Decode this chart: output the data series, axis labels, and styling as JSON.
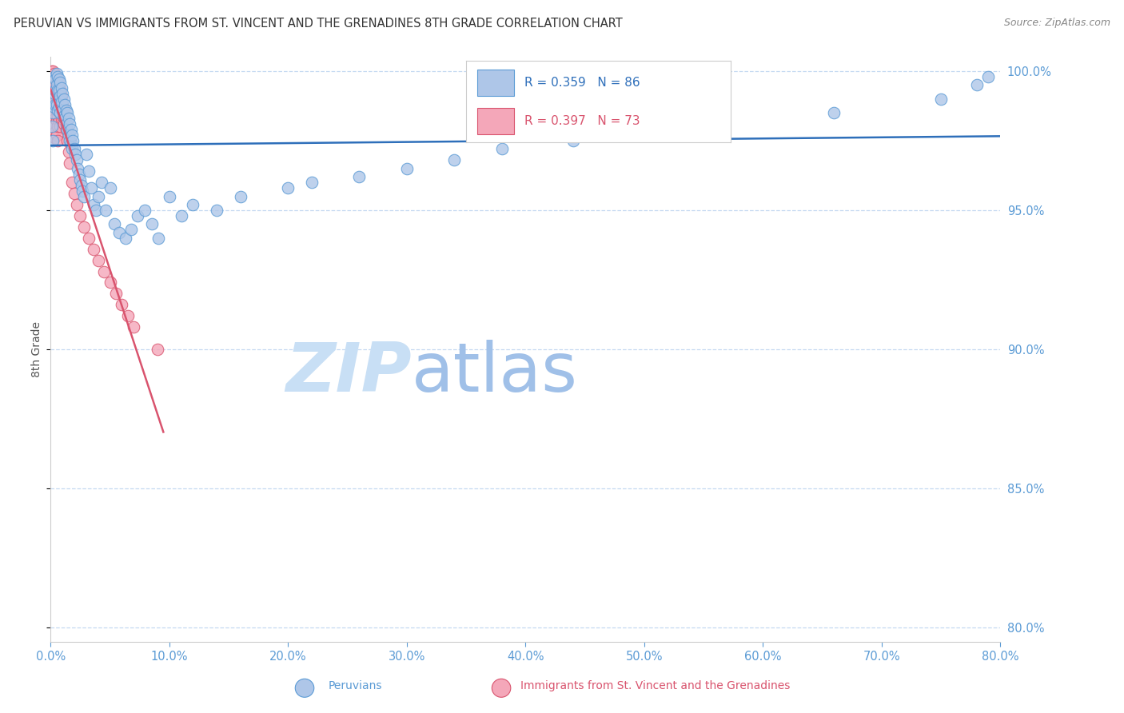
{
  "title": "PERUVIAN VS IMMIGRANTS FROM ST. VINCENT AND THE GRENADINES 8TH GRADE CORRELATION CHART",
  "source": "Source: ZipAtlas.com",
  "ylabel": "8th Grade",
  "blue_label": "Peruvians",
  "pink_label": "Immigrants from St. Vincent and the Grenadines",
  "blue_R": 0.359,
  "blue_N": 86,
  "pink_R": 0.397,
  "pink_N": 73,
  "xlim": [
    0.0,
    0.8
  ],
  "ylim": [
    0.795,
    1.005
  ],
  "yticks": [
    0.8,
    0.85,
    0.9,
    0.95,
    1.0
  ],
  "xticks": [
    0.0,
    0.1,
    0.2,
    0.3,
    0.4,
    0.5,
    0.6,
    0.7,
    0.8
  ],
  "title_color": "#333333",
  "axis_color": "#5b9bd5",
  "grid_color": "#c5d9f1",
  "watermark_zip_color": "#c8dff5",
  "watermark_atlas_color": "#a0c0e8",
  "blue_dot_color": "#aec6e8",
  "blue_dot_edge": "#5b9bd5",
  "pink_dot_color": "#f4a7b9",
  "pink_dot_edge": "#d9546e",
  "blue_line_color": "#2e6fba",
  "pink_line_color": "#d9546e",
  "blue_scatter_x": [
    0.001,
    0.001,
    0.002,
    0.002,
    0.003,
    0.003,
    0.003,
    0.004,
    0.004,
    0.004,
    0.005,
    0.005,
    0.005,
    0.006,
    0.006,
    0.006,
    0.007,
    0.007,
    0.007,
    0.008,
    0.008,
    0.008,
    0.009,
    0.009,
    0.01,
    0.01,
    0.011,
    0.011,
    0.012,
    0.012,
    0.013,
    0.013,
    0.014,
    0.014,
    0.015,
    0.015,
    0.016,
    0.016,
    0.017,
    0.017,
    0.018,
    0.018,
    0.019,
    0.02,
    0.021,
    0.022,
    0.023,
    0.024,
    0.025,
    0.026,
    0.027,
    0.028,
    0.03,
    0.032,
    0.034,
    0.036,
    0.038,
    0.04,
    0.043,
    0.046,
    0.05,
    0.054,
    0.058,
    0.063,
    0.068,
    0.073,
    0.079,
    0.085,
    0.091,
    0.1,
    0.11,
    0.12,
    0.14,
    0.16,
    0.2,
    0.22,
    0.26,
    0.3,
    0.34,
    0.38,
    0.44,
    0.55,
    0.66,
    0.75,
    0.78,
    0.79
  ],
  "blue_scatter_y": [
    0.98,
    0.99,
    0.975,
    0.985,
    0.998,
    0.992,
    0.987,
    0.997,
    0.993,
    0.988,
    0.999,
    0.995,
    0.988,
    0.998,
    0.993,
    0.986,
    0.997,
    0.993,
    0.987,
    0.996,
    0.991,
    0.985,
    0.994,
    0.989,
    0.992,
    0.986,
    0.99,
    0.984,
    0.988,
    0.983,
    0.986,
    0.981,
    0.985,
    0.979,
    0.983,
    0.977,
    0.981,
    0.975,
    0.979,
    0.974,
    0.977,
    0.972,
    0.975,
    0.972,
    0.97,
    0.968,
    0.965,
    0.963,
    0.961,
    0.959,
    0.957,
    0.955,
    0.97,
    0.964,
    0.958,
    0.952,
    0.95,
    0.955,
    0.96,
    0.95,
    0.958,
    0.945,
    0.942,
    0.94,
    0.943,
    0.948,
    0.95,
    0.945,
    0.94,
    0.955,
    0.948,
    0.952,
    0.95,
    0.955,
    0.958,
    0.96,
    0.962,
    0.965,
    0.968,
    0.972,
    0.975,
    0.98,
    0.985,
    0.99,
    0.995,
    0.998
  ],
  "pink_scatter_x": [
    0.0005,
    0.0005,
    0.001,
    0.001,
    0.001,
    0.001,
    0.001,
    0.002,
    0.002,
    0.002,
    0.002,
    0.002,
    0.002,
    0.003,
    0.003,
    0.003,
    0.003,
    0.003,
    0.003,
    0.003,
    0.004,
    0.004,
    0.004,
    0.004,
    0.004,
    0.004,
    0.005,
    0.005,
    0.005,
    0.005,
    0.005,
    0.005,
    0.006,
    0.006,
    0.006,
    0.006,
    0.006,
    0.006,
    0.007,
    0.007,
    0.007,
    0.007,
    0.008,
    0.008,
    0.008,
    0.008,
    0.009,
    0.009,
    0.009,
    0.01,
    0.01,
    0.011,
    0.011,
    0.012,
    0.013,
    0.014,
    0.015,
    0.016,
    0.018,
    0.02,
    0.022,
    0.025,
    0.028,
    0.032,
    0.036,
    0.04,
    0.045,
    0.05,
    0.055,
    0.06,
    0.065,
    0.07,
    0.09
  ],
  "pink_scatter_y": [
    0.998,
    0.993,
    1.0,
    0.997,
    0.994,
    0.99,
    0.986,
    1.0,
    0.997,
    0.993,
    0.989,
    0.985,
    0.981,
    0.999,
    0.996,
    0.993,
    0.989,
    0.984,
    0.98,
    0.976,
    0.998,
    0.995,
    0.991,
    0.987,
    0.983,
    0.978,
    0.997,
    0.994,
    0.99,
    0.986,
    0.982,
    0.977,
    0.996,
    0.992,
    0.988,
    0.984,
    0.98,
    0.975,
    0.994,
    0.991,
    0.986,
    0.982,
    0.993,
    0.989,
    0.985,
    0.98,
    0.991,
    0.987,
    0.983,
    0.988,
    0.984,
    0.986,
    0.981,
    0.983,
    0.979,
    0.975,
    0.971,
    0.967,
    0.96,
    0.956,
    0.952,
    0.948,
    0.944,
    0.94,
    0.936,
    0.932,
    0.928,
    0.924,
    0.92,
    0.916,
    0.912,
    0.908,
    0.9
  ]
}
